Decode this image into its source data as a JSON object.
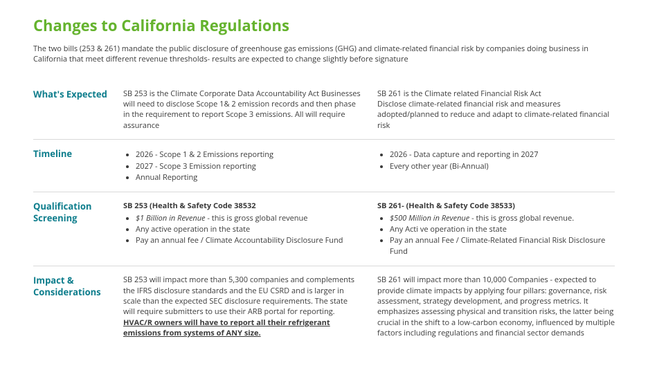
{
  "title": "Changes to California Regulations",
  "intro": "The two bills (253 & 261) mandate the public disclosure of greenhouse gas emissions (GHG) and climate-related financial risk by companies doing business in California that meet different revenue thresholds- results are expected to change slightly before signature",
  "colors": {
    "title": "#65b32e",
    "label": "#0d7d8c",
    "body": "#3a3a3a",
    "divider": "#d9d9d9",
    "background": "#ffffff"
  },
  "sections": {
    "expected": {
      "label": "What's Expected",
      "left": "SB 253 is the Climate Corporate Data Accountability Act Businesses will need to disclose Scope 1& 2 emission records and then phase in the requirement to report Scope 3 emissions. All will require assurance",
      "right": "SB 261 is the Climate related Financial Risk Act\nDisclose climate-related financial risk and measures adopted/planned to reduce and adapt to climate-related financial risk"
    },
    "timeline": {
      "label": "Timeline",
      "left_items": [
        "2026 - Scope 1 & 2 Emissions reporting",
        "2027 - Scope 3 Emission reporting",
        "Annual Reporting"
      ],
      "right_items": [
        "2026 - Data capture and reporting in 2027",
        "Every other year (Bi-Annual)"
      ]
    },
    "qualification": {
      "label": "Qualification Screening",
      "left_head": "SB 253 (Health & Safety Code 38532",
      "left_item1_emph": "$1 Billion in Revenue",
      "left_item1_rest": " - this is gross global revenue",
      "left_items_rest": [
        "Any active operation in the state",
        "Pay an annual fee / Climate Accountability Disclosure Fund"
      ],
      "right_head": "SB 261- (Health & Safety Code 38533)",
      "right_item1_emph": "$500 Million in Revenue",
      "right_item1_rest": " - this is gross global revenue.",
      "right_items_rest": [
        "Any Acti ve operation in the state",
        "Pay an annual Fee / Climate-Related Financial Risk Disclosure Fund"
      ]
    },
    "impact": {
      "label": "Impact & Considerations",
      "left_text": "SB 253 will impact more than 5,300 companies and complements the IFRS disclosure standards and the EU CSRD and is larger in scale than the expected SEC disclosure requirements. The state will require submitters to use their ARB portal for reporting. ",
      "left_emph": "HVAC/R owners will have to report all their refrigerant emissions from systems of ANY size.",
      "right_text": "SB 261 will impact more than 10,000 Companies - expected to provide climate impacts by applying four pillars: governance, risk assessment, strategy development, and progress metrics. It emphasizes assessing physical and transition risks, the latter being crucial in the shift to a low-carbon economy, influenced by multiple factors including regulations and financial sector demands"
    }
  }
}
